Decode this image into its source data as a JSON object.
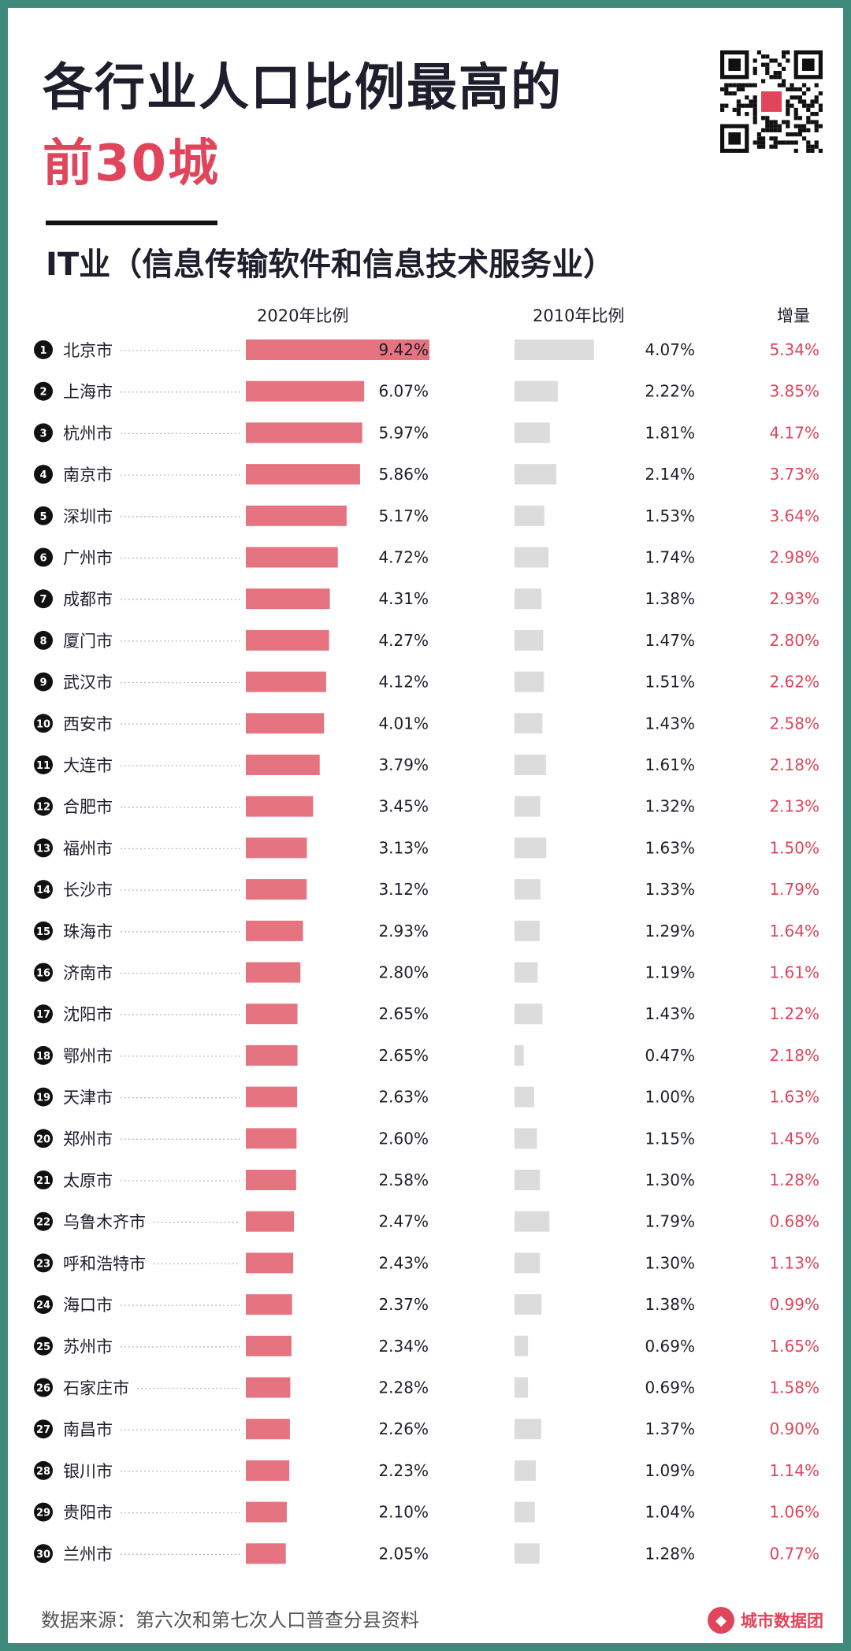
{
  "title": {
    "line1": "各行业人口比例最高的",
    "line2": "前30城",
    "subtitle": "IT业（信息传输软件和信息技术服务业）"
  },
  "colors": {
    "accent": "#e0455b",
    "bar2020": "#e57380",
    "bar2010": "#dcdcdc",
    "text": "#1e1e2c",
    "frame": "#3e8a7b"
  },
  "columns": {
    "y2020": "2020年比例",
    "y2010": "2010年比例",
    "increase": "增量"
  },
  "footer": {
    "source": "数据来源：第六次和第七次人口普查分县资料",
    "brand": "城市数据团",
    "brand_icon": "fox-logo-icon"
  },
  "qr_code": "qr-code-icon",
  "chart_data": {
    "type": "bar",
    "title": "各行业人口比例最高的前30城 — IT业（信息传输软件和信息技术服务业）",
    "ranks": [
      "1",
      "2",
      "3",
      "4",
      "5",
      "6",
      "7",
      "8",
      "9",
      "10",
      "11",
      "12",
      "13",
      "14",
      "15",
      "16",
      "17",
      "18",
      "19",
      "20",
      "21",
      "22",
      "23",
      "24",
      "25",
      "26",
      "27",
      "28",
      "29",
      "30"
    ],
    "categories": [
      "北京市",
      "上海市",
      "杭州市",
      "南京市",
      "深圳市",
      "广州市",
      "成都市",
      "厦门市",
      "武汉市",
      "西安市",
      "大连市",
      "合肥市",
      "福州市",
      "长沙市",
      "珠海市",
      "济南市",
      "沈阳市",
      "鄂州市",
      "天津市",
      "郑州市",
      "太原市",
      "乌鲁木齐市",
      "呼和浩特市",
      "海口市",
      "苏州市",
      "石家庄市",
      "南昌市",
      "银川市",
      "贵阳市",
      "兰州市"
    ],
    "series": [
      {
        "name": "2020年比例",
        "unit": "%",
        "values": [
          9.42,
          6.07,
          5.97,
          5.86,
          5.17,
          4.72,
          4.31,
          4.27,
          4.12,
          4.01,
          3.79,
          3.45,
          3.13,
          3.12,
          2.93,
          2.8,
          2.65,
          2.65,
          2.63,
          2.6,
          2.58,
          2.47,
          2.43,
          2.37,
          2.34,
          2.28,
          2.26,
          2.23,
          2.1,
          2.05
        ],
        "labels": [
          "9.42%",
          "6.07%",
          "5.97%",
          "5.86%",
          "5.17%",
          "4.72%",
          "4.31%",
          "4.27%",
          "4.12%",
          "4.01%",
          "3.79%",
          "3.45%",
          "3.13%",
          "3.12%",
          "2.93%",
          "2.80%",
          "2.65%",
          "2.65%",
          "2.63%",
          "2.60%",
          "2.58%",
          "2.47%",
          "2.43%",
          "2.37%",
          "2.34%",
          "2.28%",
          "2.26%",
          "2.23%",
          "2.10%",
          "2.05%"
        ]
      },
      {
        "name": "2010年比例",
        "unit": "%",
        "values": [
          4.07,
          2.22,
          1.81,
          2.14,
          1.53,
          1.74,
          1.38,
          1.47,
          1.51,
          1.43,
          1.61,
          1.32,
          1.63,
          1.33,
          1.29,
          1.19,
          1.43,
          0.47,
          1.0,
          1.15,
          1.3,
          1.79,
          1.3,
          1.38,
          0.69,
          0.69,
          1.37,
          1.09,
          1.04,
          1.28
        ],
        "labels": [
          "4.07%",
          "2.22%",
          "1.81%",
          "2.14%",
          "1.53%",
          "1.74%",
          "1.38%",
          "1.47%",
          "1.51%",
          "1.43%",
          "1.61%",
          "1.32%",
          "1.63%",
          "1.33%",
          "1.29%",
          "1.19%",
          "1.43%",
          "0.47%",
          "1.00%",
          "1.15%",
          "1.30%",
          "1.79%",
          "1.30%",
          "1.38%",
          "0.69%",
          "0.69%",
          "1.37%",
          "1.09%",
          "1.04%",
          "1.28%"
        ]
      },
      {
        "name": "增量",
        "unit": "%",
        "values": [
          5.34,
          3.85,
          4.17,
          3.73,
          3.64,
          2.98,
          2.93,
          2.8,
          2.62,
          2.58,
          2.18,
          2.13,
          1.5,
          1.79,
          1.64,
          1.61,
          1.22,
          2.18,
          1.63,
          1.45,
          1.28,
          0.68,
          1.13,
          0.99,
          1.65,
          1.58,
          0.9,
          1.14,
          1.06,
          0.77
        ],
        "labels": [
          "5.34%",
          "3.85%",
          "4.17%",
          "3.73%",
          "3.64%",
          "2.98%",
          "2.93%",
          "2.80%",
          "2.62%",
          "2.58%",
          "2.18%",
          "2.13%",
          "1.50%",
          "1.79%",
          "1.64%",
          "1.61%",
          "1.22%",
          "2.18%",
          "1.63%",
          "1.45%",
          "1.28%",
          "0.68%",
          "1.13%",
          "0.99%",
          "1.65%",
          "1.58%",
          "0.90%",
          "1.14%",
          "1.06%",
          "0.77%"
        ]
      }
    ],
    "xlim": [
      0,
      9.42
    ],
    "legend": "column headers at top"
  }
}
